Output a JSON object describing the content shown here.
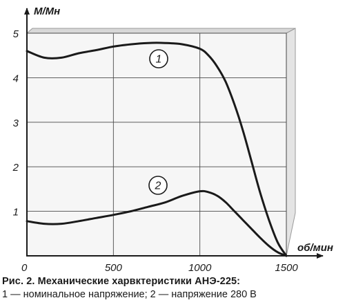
{
  "chart_data": {
    "type": "line",
    "ylabel": "М/Мн",
    "xlabel": "об/мин",
    "xlim": [
      0,
      1500
    ],
    "ylim": [
      0,
      5
    ],
    "x_ticks": [
      0,
      500,
      1000,
      1500
    ],
    "y_ticks": [
      1,
      2,
      3,
      4,
      5
    ],
    "grid": true,
    "series": [
      {
        "name": "1",
        "x": [
          0,
          100,
          200,
          300,
          400,
          500,
          600,
          700,
          800,
          900,
          1000,
          1050,
          1100,
          1150,
          1200,
          1250,
          1300,
          1350,
          1400,
          1450,
          1500
        ],
        "y": [
          4.6,
          4.45,
          4.45,
          4.55,
          4.62,
          4.7,
          4.75,
          4.78,
          4.78,
          4.75,
          4.65,
          4.5,
          4.25,
          3.9,
          3.4,
          2.8,
          2.1,
          1.4,
          0.8,
          0.3,
          0.0
        ]
      },
      {
        "name": "2",
        "x": [
          0,
          100,
          200,
          300,
          400,
          500,
          600,
          700,
          800,
          900,
          1000,
          1050,
          1100,
          1150,
          1200,
          1250,
          1300,
          1350,
          1400,
          1450,
          1500
        ],
        "y": [
          0.78,
          0.72,
          0.72,
          0.78,
          0.85,
          0.92,
          1.0,
          1.1,
          1.2,
          1.35,
          1.45,
          1.43,
          1.35,
          1.2,
          1.0,
          0.8,
          0.6,
          0.4,
          0.22,
          0.08,
          0.0
        ]
      }
    ]
  },
  "caption": {
    "title": "Рис. 2. Механические харвктеристики АНЭ-225:",
    "legend": "1 — номинальное напряжение; 2 — напряжение 280 В"
  }
}
